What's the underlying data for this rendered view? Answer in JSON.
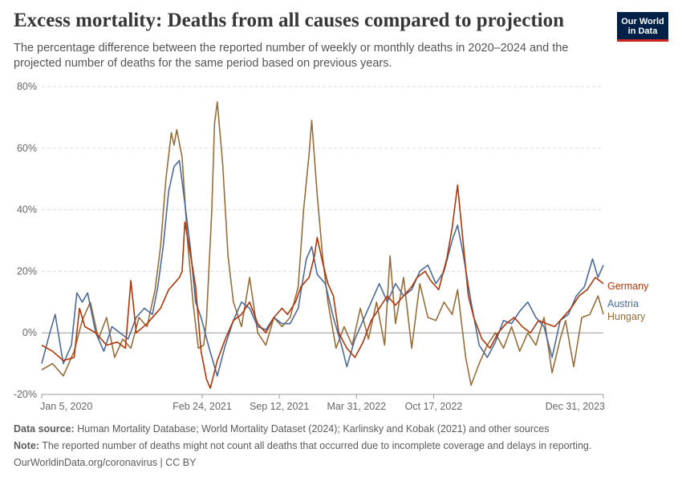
{
  "header": {
    "title": "Excess mortality: Deaths from all causes compared to projection",
    "subtitle": "The percentage difference between the reported number of weekly or monthly deaths in 2020–2024 and the projected number of deaths for the same period based on previous years.",
    "logo_line1": "Our World",
    "logo_line2": "in Data"
  },
  "footer": {
    "source_label": "Data source:",
    "source_text": "Human Mortality Database; World Mortality Dataset (2024); Karlinsky and Kobak (2021) and other sources",
    "note_label": "Note:",
    "note_text": "The reported number of deaths might not count all deaths that occurred due to incomplete coverage and delays in reporting.",
    "link_text": "OurWorldinData.org/coronavirus",
    "license_text": "| CC BY"
  },
  "chart_data": {
    "type": "line",
    "x_start": "2020-01-05",
    "x_end": "2023-12-31",
    "xlim": [
      "2020-01-05",
      "2023-12-31"
    ],
    "ylim": [
      -20,
      80
    ],
    "y_ticks": [
      -20,
      0,
      20,
      40,
      60,
      80
    ],
    "y_tick_labels": [
      "-20%",
      "0%",
      "20%",
      "40%",
      "60%",
      "80%"
    ],
    "x_ticks": [
      {
        "date": "2020-01-05",
        "label": "Jan 5, 2020"
      },
      {
        "date": "2021-02-24",
        "label": "Feb 24, 2021"
      },
      {
        "date": "2021-09-12",
        "label": "Sep 12, 2021"
      },
      {
        "date": "2022-03-31",
        "label": "Mar 31, 2022"
      },
      {
        "date": "2022-10-17",
        "label": "Oct 17, 2022"
      },
      {
        "date": "2023-12-31",
        "label": "Dec 31, 2023"
      }
    ],
    "grid": true,
    "legend_position": "right",
    "series": [
      {
        "name": "Germany",
        "color": "#b13507",
        "points": [
          [
            "2020-01-05",
            -4
          ],
          [
            "2020-02-02",
            -6
          ],
          [
            "2020-03-01",
            -9
          ],
          [
            "2020-03-29",
            -8
          ],
          [
            "2020-04-12",
            8
          ],
          [
            "2020-04-26",
            2
          ],
          [
            "2020-05-24",
            0
          ],
          [
            "2020-06-21",
            -4
          ],
          [
            "2020-07-19",
            -3
          ],
          [
            "2020-08-09",
            -5
          ],
          [
            "2020-08-23",
            17
          ],
          [
            "2020-09-06",
            0
          ],
          [
            "2020-10-04",
            3
          ],
          [
            "2020-10-25",
            6
          ],
          [
            "2020-11-08",
            8
          ],
          [
            "2020-11-29",
            14
          ],
          [
            "2020-12-13",
            16
          ],
          [
            "2020-12-27",
            18
          ],
          [
            "2021-01-03",
            20
          ],
          [
            "2021-01-10",
            36
          ],
          [
            "2021-01-24",
            26
          ],
          [
            "2021-02-07",
            15
          ],
          [
            "2021-02-21",
            -6
          ],
          [
            "2021-03-07",
            -15
          ],
          [
            "2021-03-17",
            -18
          ],
          [
            "2021-04-04",
            -9
          ],
          [
            "2021-04-25",
            -2
          ],
          [
            "2021-05-16",
            4
          ],
          [
            "2021-06-06",
            6
          ],
          [
            "2021-06-27",
            10
          ],
          [
            "2021-07-18",
            3
          ],
          [
            "2021-08-08",
            0
          ],
          [
            "2021-08-29",
            5
          ],
          [
            "2021-09-19",
            8
          ],
          [
            "2021-10-03",
            6
          ],
          [
            "2021-10-24",
            10
          ],
          [
            "2021-11-07",
            15
          ],
          [
            "2021-11-28",
            18
          ],
          [
            "2021-12-12",
            25
          ],
          [
            "2021-12-19",
            31
          ],
          [
            "2022-01-02",
            23
          ],
          [
            "2022-01-16",
            16
          ],
          [
            "2022-01-30",
            12
          ],
          [
            "2022-02-13",
            0
          ],
          [
            "2022-03-06",
            -5
          ],
          [
            "2022-03-27",
            -8
          ],
          [
            "2022-04-17",
            -3
          ],
          [
            "2022-05-08",
            4
          ],
          [
            "2022-05-29",
            8
          ],
          [
            "2022-06-19",
            12
          ],
          [
            "2022-07-10",
            9
          ],
          [
            "2022-07-31",
            12
          ],
          [
            "2022-08-21",
            15
          ],
          [
            "2022-09-04",
            18
          ],
          [
            "2022-09-25",
            20
          ],
          [
            "2022-10-09",
            17
          ],
          [
            "2022-10-30",
            14
          ],
          [
            "2022-11-20",
            24
          ],
          [
            "2022-12-04",
            34
          ],
          [
            "2022-12-18",
            48
          ],
          [
            "2023-01-01",
            30
          ],
          [
            "2023-01-15",
            12
          ],
          [
            "2023-01-29",
            5
          ],
          [
            "2023-02-19",
            -2
          ],
          [
            "2023-03-12",
            -5
          ],
          [
            "2023-04-02",
            0
          ],
          [
            "2023-04-23",
            3
          ],
          [
            "2023-05-14",
            5
          ],
          [
            "2023-06-04",
            2
          ],
          [
            "2023-06-25",
            0
          ],
          [
            "2023-07-16",
            4
          ],
          [
            "2023-08-06",
            3
          ],
          [
            "2023-08-27",
            2
          ],
          [
            "2023-09-17",
            5
          ],
          [
            "2023-10-08",
            8
          ],
          [
            "2023-10-29",
            12
          ],
          [
            "2023-11-19",
            14
          ],
          [
            "2023-12-10",
            18
          ],
          [
            "2023-12-31",
            16
          ]
        ]
      },
      {
        "name": "Austria",
        "color": "#4c6a9c",
        "points": [
          [
            "2020-01-05",
            -10
          ],
          [
            "2020-01-26",
            0
          ],
          [
            "2020-02-09",
            6
          ],
          [
            "2020-03-01",
            -10
          ],
          [
            "2020-03-22",
            -4
          ],
          [
            "2020-04-05",
            13
          ],
          [
            "2020-04-19",
            10
          ],
          [
            "2020-05-03",
            13
          ],
          [
            "2020-05-24",
            0
          ],
          [
            "2020-06-14",
            -6
          ],
          [
            "2020-07-05",
            2
          ],
          [
            "2020-07-26",
            0
          ],
          [
            "2020-08-16",
            -2
          ],
          [
            "2020-09-06",
            5
          ],
          [
            "2020-09-27",
            8
          ],
          [
            "2020-10-18",
            6
          ],
          [
            "2020-11-01",
            15
          ],
          [
            "2020-11-15",
            28
          ],
          [
            "2020-11-29",
            46
          ],
          [
            "2020-12-13",
            54
          ],
          [
            "2020-12-27",
            56
          ],
          [
            "2021-01-10",
            42
          ],
          [
            "2021-01-24",
            28
          ],
          [
            "2021-02-07",
            10
          ],
          [
            "2021-02-21",
            5
          ],
          [
            "2021-03-14",
            -5
          ],
          [
            "2021-04-04",
            -14
          ],
          [
            "2021-04-25",
            -4
          ],
          [
            "2021-05-16",
            4
          ],
          [
            "2021-06-06",
            10
          ],
          [
            "2021-06-27",
            8
          ],
          [
            "2021-07-18",
            2
          ],
          [
            "2021-08-08",
            1
          ],
          [
            "2021-08-29",
            5
          ],
          [
            "2021-09-19",
            3
          ],
          [
            "2021-10-10",
            3
          ],
          [
            "2021-10-31",
            8
          ],
          [
            "2021-11-21",
            24
          ],
          [
            "2021-12-05",
            28
          ],
          [
            "2021-12-19",
            19
          ],
          [
            "2022-01-09",
            16
          ],
          [
            "2022-01-30",
            5
          ],
          [
            "2022-02-20",
            -4
          ],
          [
            "2022-03-06",
            -11
          ],
          [
            "2022-03-27",
            -2
          ],
          [
            "2022-04-17",
            4
          ],
          [
            "2022-05-08",
            10
          ],
          [
            "2022-05-29",
            16
          ],
          [
            "2022-06-19",
            10
          ],
          [
            "2022-07-10",
            16
          ],
          [
            "2022-07-31",
            12
          ],
          [
            "2022-08-21",
            14
          ],
          [
            "2022-09-11",
            20
          ],
          [
            "2022-10-02",
            22
          ],
          [
            "2022-10-23",
            16
          ],
          [
            "2022-11-13",
            20
          ],
          [
            "2022-12-04",
            30
          ],
          [
            "2022-12-18",
            35
          ],
          [
            "2023-01-01",
            26
          ],
          [
            "2023-01-22",
            10
          ],
          [
            "2023-02-12",
            -4
          ],
          [
            "2023-03-05",
            -8
          ],
          [
            "2023-03-26",
            -3
          ],
          [
            "2023-04-16",
            4
          ],
          [
            "2023-05-07",
            3
          ],
          [
            "2023-05-28",
            7
          ],
          [
            "2023-06-18",
            10
          ],
          [
            "2023-07-09",
            5
          ],
          [
            "2023-07-30",
            2
          ],
          [
            "2023-08-20",
            -8
          ],
          [
            "2023-09-10",
            4
          ],
          [
            "2023-10-01",
            6
          ],
          [
            "2023-10-22",
            12
          ],
          [
            "2023-11-12",
            15
          ],
          [
            "2023-12-03",
            24
          ],
          [
            "2023-12-17",
            18
          ],
          [
            "2023-12-31",
            22
          ]
        ]
      },
      {
        "name": "Hungary",
        "color": "#996d39",
        "points": [
          [
            "2020-01-05",
            -12
          ],
          [
            "2020-02-02",
            -10
          ],
          [
            "2020-03-01",
            -14
          ],
          [
            "2020-03-29",
            -6
          ],
          [
            "2020-04-19",
            4
          ],
          [
            "2020-05-10",
            10
          ],
          [
            "2020-05-31",
            -2
          ],
          [
            "2020-06-21",
            5
          ],
          [
            "2020-07-12",
            -8
          ],
          [
            "2020-08-02",
            -2
          ],
          [
            "2020-08-23",
            -5
          ],
          [
            "2020-09-13",
            5
          ],
          [
            "2020-10-04",
            2
          ],
          [
            "2020-10-25",
            14
          ],
          [
            "2020-11-08",
            28
          ],
          [
            "2020-11-22",
            50
          ],
          [
            "2020-12-06",
            65
          ],
          [
            "2020-12-13",
            61
          ],
          [
            "2020-12-20",
            66
          ],
          [
            "2021-01-03",
            57
          ],
          [
            "2021-01-17",
            30
          ],
          [
            "2021-01-31",
            10
          ],
          [
            "2021-02-14",
            -5
          ],
          [
            "2021-02-28",
            -4
          ],
          [
            "2021-03-07",
            4
          ],
          [
            "2021-03-21",
            40
          ],
          [
            "2021-03-28",
            68
          ],
          [
            "2021-04-04",
            75
          ],
          [
            "2021-04-18",
            55
          ],
          [
            "2021-05-02",
            25
          ],
          [
            "2021-05-16",
            10
          ],
          [
            "2021-06-06",
            2
          ],
          [
            "2021-06-27",
            18
          ],
          [
            "2021-07-18",
            0
          ],
          [
            "2021-08-08",
            -4
          ],
          [
            "2021-08-29",
            5
          ],
          [
            "2021-09-19",
            2
          ],
          [
            "2021-10-10",
            5
          ],
          [
            "2021-10-31",
            15
          ],
          [
            "2021-11-14",
            40
          ],
          [
            "2021-11-28",
            58
          ],
          [
            "2021-12-05",
            69
          ],
          [
            "2021-12-19",
            45
          ],
          [
            "2022-01-02",
            25
          ],
          [
            "2022-01-16",
            10
          ],
          [
            "2022-02-06",
            -5
          ],
          [
            "2022-02-27",
            2
          ],
          [
            "2022-03-20",
            -4
          ],
          [
            "2022-04-10",
            8
          ],
          [
            "2022-05-01",
            -2
          ],
          [
            "2022-05-22",
            10
          ],
          [
            "2022-06-12",
            -4
          ],
          [
            "2022-06-26",
            25
          ],
          [
            "2022-07-10",
            3
          ],
          [
            "2022-07-31",
            18
          ],
          [
            "2022-08-21",
            -5
          ],
          [
            "2022-09-11",
            16
          ],
          [
            "2022-10-02",
            5
          ],
          [
            "2022-10-23",
            4
          ],
          [
            "2022-11-13",
            10
          ],
          [
            "2022-12-04",
            6
          ],
          [
            "2022-12-18",
            14
          ],
          [
            "2023-01-08",
            -8
          ],
          [
            "2023-01-22",
            -17
          ],
          [
            "2023-02-12",
            -10
          ],
          [
            "2023-03-05",
            -4
          ],
          [
            "2023-03-26",
            0
          ],
          [
            "2023-04-16",
            -5
          ],
          [
            "2023-05-07",
            2
          ],
          [
            "2023-05-28",
            -6
          ],
          [
            "2023-06-18",
            0
          ],
          [
            "2023-07-09",
            -4
          ],
          [
            "2023-07-30",
            5
          ],
          [
            "2023-08-20",
            -13
          ],
          [
            "2023-09-10",
            -2
          ],
          [
            "2023-09-24",
            4
          ],
          [
            "2023-10-15",
            -11
          ],
          [
            "2023-11-05",
            5
          ],
          [
            "2023-11-26",
            6
          ],
          [
            "2023-12-17",
            12
          ],
          [
            "2023-12-31",
            6
          ]
        ]
      }
    ]
  }
}
